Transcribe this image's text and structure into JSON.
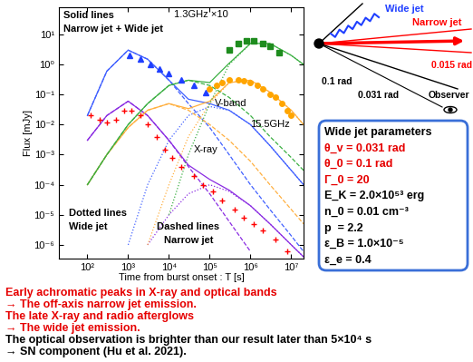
{
  "chart_data": {
    "type": "scatter",
    "log": true,
    "grid": false,
    "x_label": "Time from burst onset : T [s]",
    "y_label": "Flux [mJy]",
    "xlim": [
      20,
      20000000.0
    ],
    "ylim": [
      3.5e-07,
      80
    ],
    "xticks": [
      {
        "value": 100,
        "label": "10²"
      },
      {
        "value": 1000,
        "label": "10³"
      },
      {
        "value": 10000,
        "label": "10⁴"
      },
      {
        "value": 100000,
        "label": "10⁵"
      },
      {
        "value": 1000000,
        "label": "10⁶"
      },
      {
        "value": 10000000,
        "label": "10⁷"
      }
    ],
    "yticks": [
      {
        "value": 1e-06,
        "label": "10⁻⁶"
      },
      {
        "value": 1e-05,
        "label": "10⁻⁵"
      },
      {
        "value": 0.0001,
        "label": "10⁻⁴"
      },
      {
        "value": 0.001,
        "label": "10⁻³"
      },
      {
        "value": 0.01,
        "label": "10⁻²"
      },
      {
        "value": 0.1,
        "label": "10⁻¹"
      },
      {
        "value": 1,
        "label": "10⁰"
      },
      {
        "value": 10,
        "label": "10¹"
      }
    ],
    "annotations": [
      "Solid lines",
      "Narrow jet + Wide jet",
      "Dotted lines",
      "Wide jet",
      "Dashed lines",
      "Narrow jet"
    ],
    "series": [
      {
        "name": "X-ray",
        "type": "scatter",
        "marker": "plus",
        "color": "#ff0000",
        "x": [
          120,
          200,
          300,
          500,
          800,
          1200,
          2000,
          3000,
          5000,
          8000,
          12000,
          20000,
          40000,
          70000,
          120000,
          200000,
          400000,
          700000,
          1200000,
          2000000,
          4000000,
          8000000
        ],
        "values": [
          0.02,
          0.015,
          0.012,
          0.015,
          0.03,
          0.03,
          0.02,
          0.01,
          0.004,
          0.0015,
          0.0008,
          0.0004,
          0.0002,
          0.0001,
          6e-05,
          3e-05,
          1.5e-05,
          8e-06,
          5e-06,
          3e-06,
          1.5e-06,
          6e-07
        ]
      },
      {
        "name": "V-band",
        "type": "scatter",
        "marker": "triangle",
        "color": "#1f3fff",
        "x": [
          1100,
          2000,
          3500,
          6000,
          10000,
          20000,
          40000,
          80000
        ],
        "values": [
          2,
          1.5,
          1,
          0.7,
          0.5,
          0.3,
          0.2,
          0.12
        ]
      },
      {
        "name": "15.5GHz",
        "type": "scatter",
        "marker": "circle",
        "color": "#ffa500",
        "x": [
          100000,
          150000,
          200000,
          300000,
          500000,
          700000,
          1000000,
          1500000,
          2000000,
          3000000,
          4000000,
          6000000,
          8000000,
          10000000
        ],
        "values": [
          0.15,
          0.2,
          0.25,
          0.3,
          0.3,
          0.28,
          0.25,
          0.2,
          0.15,
          0.1,
          0.08,
          0.05,
          0.03,
          0.02
        ]
      },
      {
        "name": "1.3GHz ×10",
        "type": "scatter",
        "marker": "square",
        "color": "#1e8c1e",
        "x": [
          300000,
          500000,
          800000,
          1200000,
          2000000,
          3000000,
          5000000
        ],
        "values": [
          3,
          5,
          6,
          6,
          5,
          4,
          2.5
        ]
      },
      {
        "type": "line",
        "line_style": "solid",
        "color": "#4060ff",
        "x": [
          100,
          300,
          1000,
          3000,
          10000,
          30000,
          100000,
          300000,
          1000000,
          3000000,
          10000000,
          20000000
        ],
        "values": [
          0.02,
          0.6,
          3,
          1.5,
          0.3,
          0.07,
          0.05,
          0.03,
          0.01,
          0.002,
          0.0003,
          0.0001
        ]
      },
      {
        "type": "line",
        "line_style": "dashed",
        "color": "#4060ff",
        "x": [
          100,
          300,
          1000,
          3000,
          10000,
          30000,
          100000,
          300000,
          1000000,
          3000000,
          10000000,
          20000000
        ],
        "values": [
          0.02,
          0.6,
          3,
          1.5,
          0.3,
          0.05,
          0.008,
          0.001,
          0.0001,
          1.5e-05,
          2e-06,
          6e-07
        ]
      },
      {
        "type": "line",
        "line_style": "dotted",
        "color": "#4060ff",
        "x": [
          100,
          300,
          1000,
          3000,
          10000,
          30000,
          100000,
          300000,
          1000000,
          3000000,
          10000000,
          20000000
        ],
        "values": [
          null,
          null,
          1e-06,
          0.0001,
          0.003,
          0.02,
          0.04,
          0.03,
          0.01,
          0.002,
          0.0003,
          0.0001
        ]
      },
      {
        "type": "line",
        "line_style": "solid",
        "color": "#8a2be2",
        "x": [
          100,
          300,
          1000,
          3000,
          10000,
          30000,
          100000,
          300000,
          1000000,
          3000000,
          10000000,
          20000000
        ],
        "values": [
          0.003,
          0.02,
          0.06,
          0.02,
          0.003,
          0.00045,
          0.00015,
          6.6e-05,
          2e-05,
          5e-06,
          1e-06,
          4e-07
        ]
      },
      {
        "type": "line",
        "line_style": "dashed",
        "color": "#8a2be2",
        "x": [
          100,
          300,
          1000,
          3000,
          10000,
          30000,
          100000,
          300000,
          1000000,
          3000000,
          10000000,
          20000000
        ],
        "values": [
          0.003,
          0.02,
          0.06,
          0.02,
          0.003,
          0.0004,
          5e-05,
          6e-06,
          6e-07,
          null,
          null,
          null
        ]
      },
      {
        "type": "line",
        "line_style": "dotted",
        "color": "#8a2be2",
        "x": [
          100,
          300,
          1000,
          3000,
          10000,
          30000,
          100000,
          300000,
          1000000,
          3000000,
          10000000,
          20000000
        ],
        "values": [
          null,
          null,
          null,
          1e-06,
          1e-05,
          5e-05,
          0.0001,
          6e-05,
          2e-05,
          5e-06,
          1e-06,
          4e-07
        ]
      },
      {
        "type": "line",
        "line_style": "solid",
        "color": "#ffb040",
        "x": [
          100,
          300,
          1000,
          3000,
          10000,
          30000,
          100000,
          300000,
          1000000,
          3000000,
          10000000,
          20000000
        ],
        "values": [
          0.0001,
          0.001,
          0.008,
          0.03,
          0.05,
          0.034,
          0.06,
          0.25,
          0.3,
          0.12,
          0.03,
          0.01
        ]
      },
      {
        "type": "line",
        "line_style": "dashed",
        "color": "#ffb040",
        "x": [
          100,
          300,
          1000,
          3000,
          10000,
          30000,
          100000,
          300000,
          1000000,
          3000000,
          10000000,
          20000000
        ],
        "values": [
          0.0001,
          0.001,
          0.008,
          0.03,
          0.05,
          0.03,
          0.01,
          0.003,
          0.0006,
          0.0001,
          1.5e-05,
          5e-06
        ]
      },
      {
        "type": "line",
        "line_style": "dotted",
        "color": "#ffb040",
        "x": [
          100,
          300,
          1000,
          3000,
          10000,
          30000,
          100000,
          300000,
          1000000,
          3000000,
          10000000,
          20000000
        ],
        "values": [
          null,
          null,
          null,
          1e-06,
          0.0001,
          0.004,
          0.05,
          0.25,
          0.3,
          0.12,
          0.03,
          0.01
        ]
      },
      {
        "type": "line",
        "line_style": "solid",
        "color": "#3cb043",
        "x": [
          100,
          300,
          1000,
          3000,
          10000,
          30000,
          100000,
          300000,
          1000000,
          3000000,
          10000000,
          20000000
        ],
        "values": [
          0.0001,
          0.001,
          0.01,
          0.05,
          0.2,
          0.3,
          0.25,
          1.1,
          5,
          5,
          2,
          1
        ]
      },
      {
        "type": "line",
        "line_style": "dashed",
        "color": "#3cb043",
        "x": [
          100,
          300,
          1000,
          3000,
          10000,
          30000,
          100000,
          300000,
          1000000,
          3000000,
          10000000,
          20000000
        ],
        "values": [
          0.0001,
          0.001,
          0.01,
          0.05,
          0.2,
          0.3,
          0.2,
          0.08,
          0.02,
          0.004,
          0.0008,
          0.0003
        ]
      },
      {
        "type": "line",
        "line_style": "dotted",
        "color": "#3cb043",
        "x": [
          100,
          300,
          1000,
          3000,
          10000,
          30000,
          100000,
          300000,
          1000000,
          3000000,
          10000000,
          20000000
        ],
        "values": [
          null,
          null,
          null,
          null,
          1e-05,
          0.001,
          0.05,
          1,
          5,
          5,
          2,
          1
        ]
      }
    ]
  },
  "diagram": {
    "wide_jet": "Wide jet",
    "narrow_jet": "Narrow jet",
    "narrow_angle": "0.015 rad",
    "wide_angle": "0.1 rad",
    "view_angle": "0.031 rad",
    "observer": "Observer"
  },
  "parameters": {
    "title": "Wide jet parameters",
    "lines": [
      {
        "text": "θ_v = 0.031 rad",
        "color": "#e60000"
      },
      {
        "text": "θ_0 = 0.1 rad",
        "color": "#e60000"
      },
      {
        "text": "Γ_0 = 20",
        "color": "#e60000"
      },
      {
        "text": "E_K = 2.0×10⁵³ erg",
        "color": "#000000"
      },
      {
        "text": "n_0 = 0.01 cm⁻³",
        "color": "#000000"
      },
      {
        "text": "p  = 2.2",
        "color": "#000000"
      },
      {
        "text": "ε_B = 1.0×10⁻⁵",
        "color": "#000000"
      },
      {
        "text": "ε_e = 0.4",
        "color": "#000000"
      }
    ]
  },
  "notes": [
    {
      "text": "Early achromatic peaks in X-ray and optical bands",
      "color": "#e60000"
    },
    {
      "text": "→ The off-axis narrow jet emission.",
      "color": "#e60000"
    },
    {
      "text": "The late X-ray and radio afterglows",
      "color": "#e60000"
    },
    {
      "text": "→ The wide jet emission.",
      "color": "#e60000"
    },
    {
      "text": "The optical observation is brighter than our result later than 5×10⁴ s",
      "color": "#000000"
    },
    {
      "text": "→ SN component (Hu et al. 2021).",
      "color": "#000000"
    }
  ]
}
